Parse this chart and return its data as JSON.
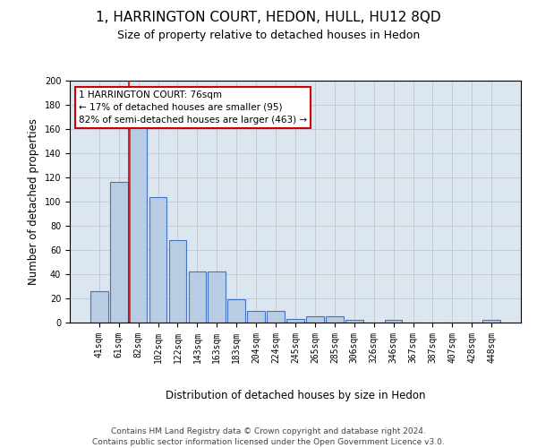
{
  "title": "1, HARRINGTON COURT, HEDON, HULL, HU12 8QD",
  "subtitle": "Size of property relative to detached houses in Hedon",
  "xlabel": "Distribution of detached houses by size in Hedon",
  "ylabel": "Number of detached properties",
  "footer_line1": "Contains HM Land Registry data © Crown copyright and database right 2024.",
  "footer_line2": "Contains public sector information licensed under the Open Government Licence v3.0.",
  "categories": [
    "41sqm",
    "61sqm",
    "82sqm",
    "102sqm",
    "122sqm",
    "143sqm",
    "163sqm",
    "183sqm",
    "204sqm",
    "224sqm",
    "245sqm",
    "265sqm",
    "285sqm",
    "306sqm",
    "326sqm",
    "346sqm",
    "367sqm",
    "387sqm",
    "407sqm",
    "428sqm",
    "448sqm"
  ],
  "values": [
    26,
    116,
    164,
    104,
    68,
    42,
    42,
    19,
    10,
    10,
    3,
    5,
    5,
    2,
    0,
    2,
    0,
    0,
    0,
    0,
    2
  ],
  "bar_color": "#b8cce4",
  "bar_edge_color": "#4472c4",
  "annotation_text": "1 HARRINGTON COURT: 76sqm\n← 17% of detached houses are smaller (95)\n82% of semi-detached houses are larger (463) →",
  "vline_x": 1.5,
  "vline_color": "#cc0000",
  "annotation_box_facecolor": "#ffffff",
  "annotation_box_edgecolor": "#cc0000",
  "ylim": [
    0,
    200
  ],
  "yticks": [
    0,
    20,
    40,
    60,
    80,
    100,
    120,
    140,
    160,
    180,
    200
  ],
  "grid_color": "#c0c0c0",
  "bg_color": "#dce6f1",
  "title_fontsize": 11,
  "subtitle_fontsize": 9,
  "axis_label_fontsize": 8.5,
  "tick_fontsize": 7,
  "footer_fontsize": 6.5
}
